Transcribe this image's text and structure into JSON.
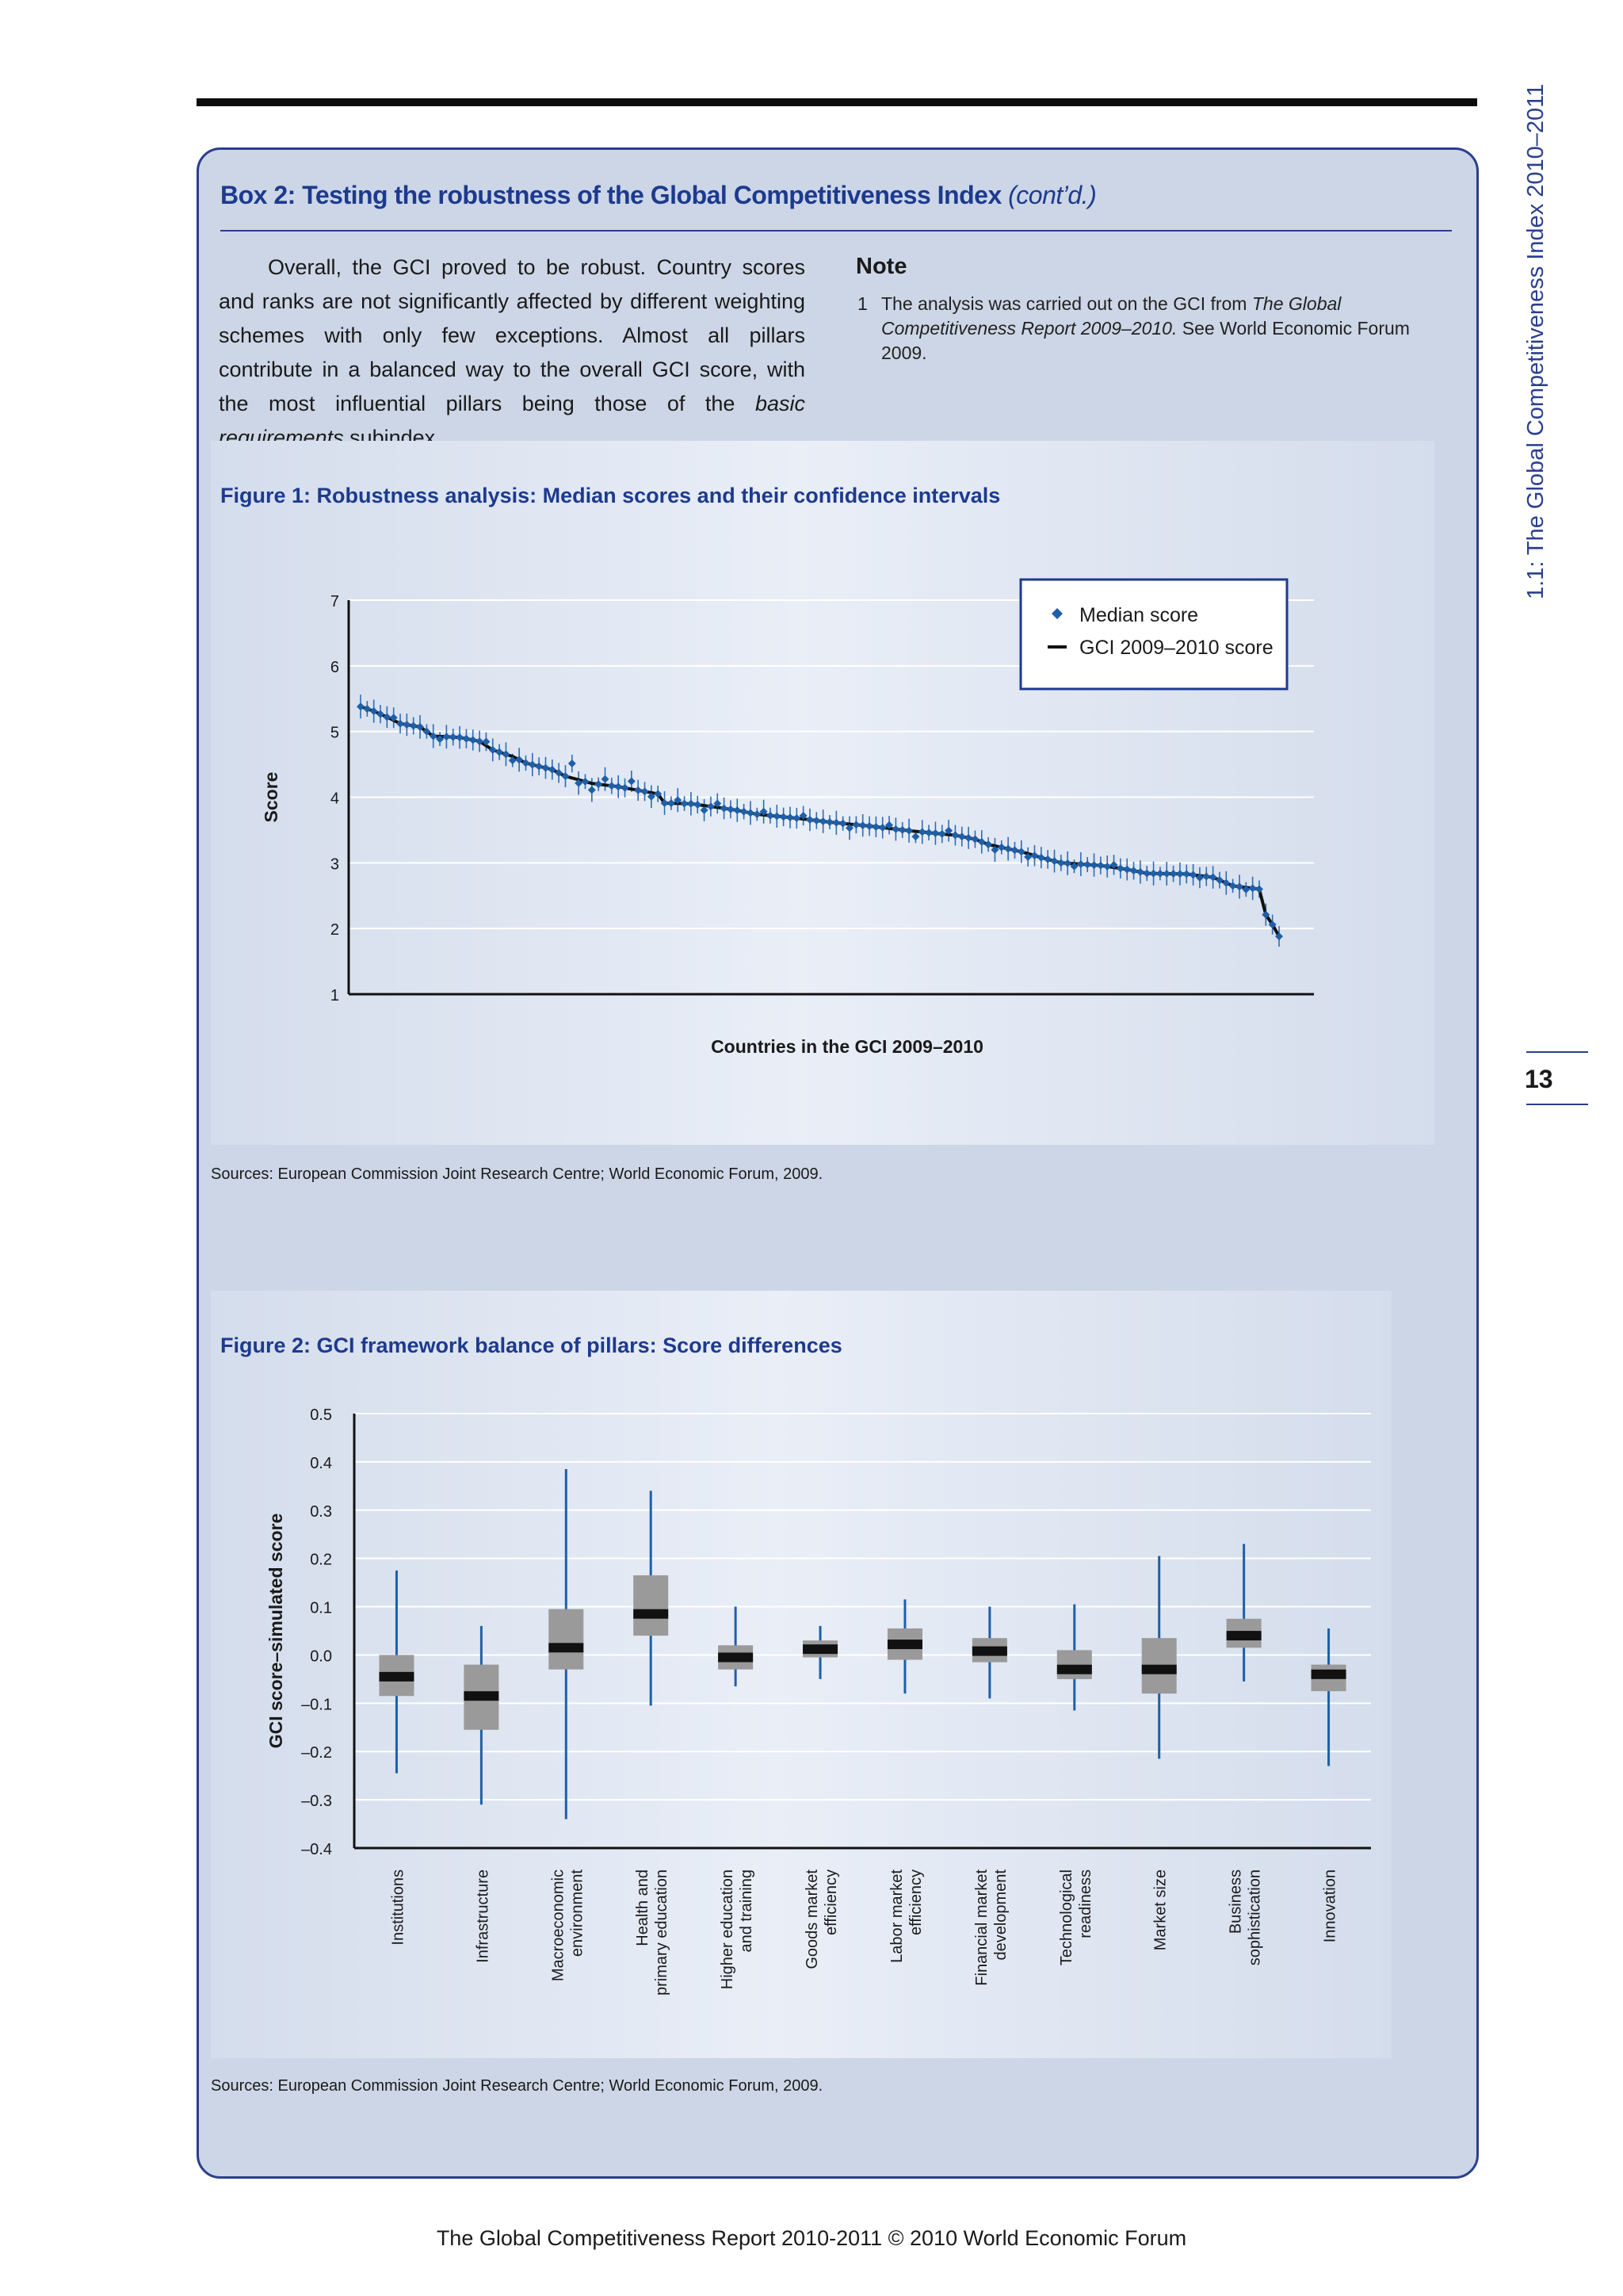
{
  "running_head": "1.1: The Global Competitiveness Index 2010–2011",
  "page_number": "13",
  "box": {
    "title": "Box 2: Testing the robustness of the Global Competitiveness Index",
    "title_suffix": "(cont’d.)",
    "intro_before": "Overall, the GCI proved to be robust. Country scores and ranks are not significantly affected by different weighting schemes with only few exceptions. Almost all pillars contribute in a balanced way to the overall GCI score, with the most influential pillars being those of the ",
    "intro_italic": "basic requirements",
    "intro_after": " subindex.",
    "note_heading": "Note",
    "note_number": "1",
    "note_before": "The analysis was carried out on the GCI from ",
    "note_italic": "The Global Competitiveness Report 2009–2010.",
    "note_after": " See World Economic Forum 2009."
  },
  "figure1": {
    "title": "Figure 1: Robustness analysis: Median scores and their confidence intervals",
    "sources": "Sources: European Commission Joint Research Centre; World Economic Forum, 2009."
  },
  "figure2": {
    "title": "Figure 2: GCI framework balance of pillars: Score differences",
    "sources": "Sources: European Commission Joint Research Centre; World Economic Forum, 2009."
  },
  "footer": "The Global Competitiveness Report 2010-2011 © 2010 World Economic Forum",
  "colors": {
    "accent": "#1d3a8f",
    "median_marker": "#1f5fa8",
    "box_fill": "#9a9a9a",
    "whisker": "#1f5fa8"
  },
  "chart_data": [
    {
      "type": "line",
      "xlabel": "Countries in the GCI 2009–2010",
      "ylabel": "Score",
      "ylim": [
        1,
        7
      ],
      "yticks": [
        1,
        2,
        3,
        4,
        5,
        6,
        7
      ],
      "grid": true,
      "legend_position": "top-right",
      "series": [
        {
          "name": "Median score",
          "marker": "diamond"
        },
        {
          "name": "GCI 2009–2010 score",
          "marker": "line"
        }
      ],
      "anchors": [
        [
          1,
          5.38
        ],
        [
          3,
          5.31
        ],
        [
          5,
          5.22
        ],
        [
          7,
          5.12
        ],
        [
          10,
          5.07
        ],
        [
          12,
          4.93
        ],
        [
          16,
          4.91
        ],
        [
          19,
          4.85
        ],
        [
          21,
          4.72
        ],
        [
          24,
          4.62
        ],
        [
          26,
          4.52
        ],
        [
          30,
          4.42
        ],
        [
          32,
          4.32
        ],
        [
          36,
          4.21
        ],
        [
          40,
          4.16
        ],
        [
          46,
          4.05
        ],
        [
          47,
          3.91
        ],
        [
          51,
          3.9
        ],
        [
          56,
          3.83
        ],
        [
          58,
          3.8
        ],
        [
          61,
          3.74
        ],
        [
          67,
          3.68
        ],
        [
          72,
          3.62
        ],
        [
          78,
          3.56
        ],
        [
          83,
          3.5
        ],
        [
          87,
          3.46
        ],
        [
          91,
          3.42
        ],
        [
          94,
          3.36
        ],
        [
          96,
          3.28
        ],
        [
          101,
          3.17
        ],
        [
          104,
          3.08
        ],
        [
          107,
          3.0
        ],
        [
          113,
          2.96
        ],
        [
          117,
          2.9
        ],
        [
          120,
          2.84
        ],
        [
          126,
          2.83
        ],
        [
          130,
          2.78
        ],
        [
          133,
          2.65
        ],
        [
          137,
          2.6
        ],
        [
          138,
          2.21
        ],
        [
          139,
          2.06
        ],
        [
          140,
          1.88
        ]
      ],
      "median_offsets": {
        "6": 0.04,
        "13": -0.04,
        "20": 0.06,
        "24": -0.06,
        "33": 0.22,
        "34": -0.05,
        "36": -0.1,
        "38": 0.09,
        "42": 0.12,
        "45": -0.06,
        "49": 0.05,
        "53": -0.07,
        "55": 0.06,
        "62": 0.05,
        "68": 0.05,
        "75": -0.06,
        "81": 0.05,
        "85": -0.08,
        "90": 0.06,
        "97": -0.06,
        "102": -0.05,
        "109": -0.04,
        "115": 0.04,
        "128": -0.03,
        "135": -0.03
      },
      "ci_half_width": 0.14
    },
    {
      "type": "box",
      "ylabel": "GCI score–simulated score",
      "ylim": [
        -0.4,
        0.5
      ],
      "yticks": [
        0.5,
        0.4,
        0.3,
        0.2,
        0.1,
        0.0,
        -0.1,
        -0.2,
        -0.3,
        -0.4
      ],
      "ytick_labels": [
        "0.5",
        "0.4",
        "0.3",
        "0.2",
        "0.1",
        "0.0",
        "–0.1",
        "–0.2",
        "–0.3",
        "–0.4"
      ],
      "grid": true,
      "categories": [
        [
          "Institutions"
        ],
        [
          "Infrastructure"
        ],
        [
          "Macroeconomic",
          "environment"
        ],
        [
          "Health and",
          "primary education"
        ],
        [
          "Higher education",
          "and training"
        ],
        [
          "Goods market",
          "efficiency"
        ],
        [
          "Labor market",
          "efficiency"
        ],
        [
          "Financial market",
          "development"
        ],
        [
          "Technological",
          "readiness"
        ],
        [
          "Market size"
        ],
        [
          "Business",
          "sophistication"
        ],
        [
          "Innovation"
        ]
      ],
      "min": [
        -0.245,
        -0.31,
        -0.34,
        -0.105,
        -0.065,
        -0.05,
        -0.08,
        -0.09,
        -0.115,
        -0.215,
        -0.055,
        -0.23
      ],
      "q1": [
        -0.085,
        -0.155,
        -0.03,
        0.04,
        -0.03,
        -0.005,
        -0.01,
        -0.015,
        -0.05,
        -0.08,
        0.015,
        -0.075
      ],
      "median": [
        -0.045,
        -0.085,
        0.015,
        0.085,
        -0.005,
        0.012,
        0.022,
        0.008,
        -0.03,
        -0.03,
        0.04,
        -0.04
      ],
      "q3": [
        0.0,
        -0.02,
        0.095,
        0.165,
        0.02,
        0.03,
        0.055,
        0.035,
        0.01,
        0.035,
        0.075,
        -0.02
      ],
      "max": [
        0.175,
        0.06,
        0.385,
        0.34,
        0.1,
        0.06,
        0.115,
        0.1,
        0.105,
        0.205,
        0.23,
        0.055
      ]
    }
  ]
}
